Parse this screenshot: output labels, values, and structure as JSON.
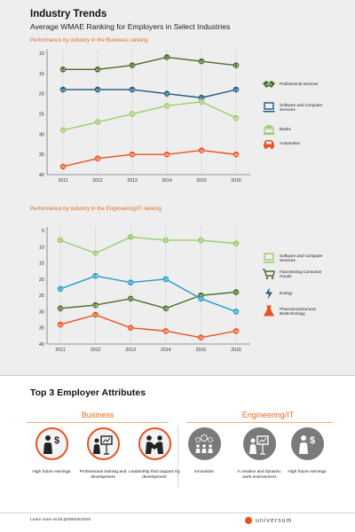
{
  "header": {
    "title": "Industry Trends",
    "subtitle": "Average WMAE Ranking for Employers in Select Industries"
  },
  "chart_data": [
    {
      "type": "line",
      "title": "Performance by industry in the Business ranking",
      "x": [
        "2011",
        "2012",
        "2013",
        "2014",
        "2015",
        "2016"
      ],
      "yticks": [
        "10",
        "15",
        "20",
        "25",
        "30",
        "35",
        "40"
      ],
      "ylim": [
        40,
        10
      ],
      "y_inverted": true,
      "grid": "dotted vertical",
      "legend_position": "right",
      "series": [
        {
          "name": "Professional services",
          "color": "#4a6b2a",
          "icon": "handshake-icon",
          "values": [
            14,
            14,
            13,
            11,
            12,
            13
          ]
        },
        {
          "name": "Software and Computer Services",
          "color": "#1f5a7a",
          "icon": "laptop-icon",
          "values": [
            19,
            19,
            19,
            20,
            21,
            19
          ]
        },
        {
          "name": "Banks",
          "color": "#9acd6b",
          "icon": "bank-icon",
          "values": [
            29,
            27,
            25,
            23,
            22,
            26
          ]
        },
        {
          "name": "Automotive",
          "color": "#e8531f",
          "icon": "car-icon",
          "values": [
            38,
            36,
            35,
            35,
            34,
            35
          ]
        }
      ]
    },
    {
      "type": "line",
      "title": "Performance by industry in the Engineering/IT ranking",
      "x": [
        "2011",
        "2012",
        "2013",
        "2014",
        "2015",
        "2016"
      ],
      "yticks": [
        "5",
        "10",
        "15",
        "20",
        "25",
        "30",
        "35",
        "40"
      ],
      "ylim": [
        40,
        5
      ],
      "y_inverted": true,
      "grid": "dotted vertical",
      "legend_position": "right",
      "series": [
        {
          "name": "Software and Computer Services",
          "color": "#9acd6b",
          "icon": "laptop-icon",
          "values": [
            8,
            12,
            7,
            8,
            8,
            9
          ]
        },
        {
          "name": "Fast Moving Consumer Goods",
          "color": "#4a6b2a",
          "icon": "cart-icon",
          "values": [
            29,
            28,
            26,
            29,
            25,
            24
          ]
        },
        {
          "name": "Energy",
          "color": "#1f9ec4",
          "icon": "energy-icon",
          "values": [
            23,
            19,
            21,
            20,
            26,
            30
          ]
        },
        {
          "name": "Pharmaceutical and Biotechnology",
          "color": "#e8531f",
          "icon": "flask-icon",
          "values": [
            34,
            31,
            35,
            36,
            38,
            36
          ]
        }
      ]
    }
  ],
  "attributes": {
    "title": "Top 3 Employer Attributes",
    "business": {
      "title": "Business",
      "items": [
        {
          "label": "High future earnings",
          "icon": "money-person-icon"
        },
        {
          "label": "Professional training and development",
          "icon": "presenter-icon"
        },
        {
          "label": "Leadership that support my development",
          "icon": "handshake-people-icon"
        }
      ]
    },
    "engineering": {
      "title": "Engineering/IT",
      "items": [
        {
          "label": "Innovation",
          "icon": "gears-people-icon"
        },
        {
          "label": "A creative and dynamic work environment",
          "icon": "presenter-icon"
        },
        {
          "label": "High future earnings",
          "icon": "money-person-icon"
        }
      ]
    }
  },
  "footer": {
    "text": "Learn more at bit.ly/WMAE2016",
    "brand": "universum"
  },
  "colors": {
    "accent": "#e8531f",
    "background": "#eeeeee"
  }
}
